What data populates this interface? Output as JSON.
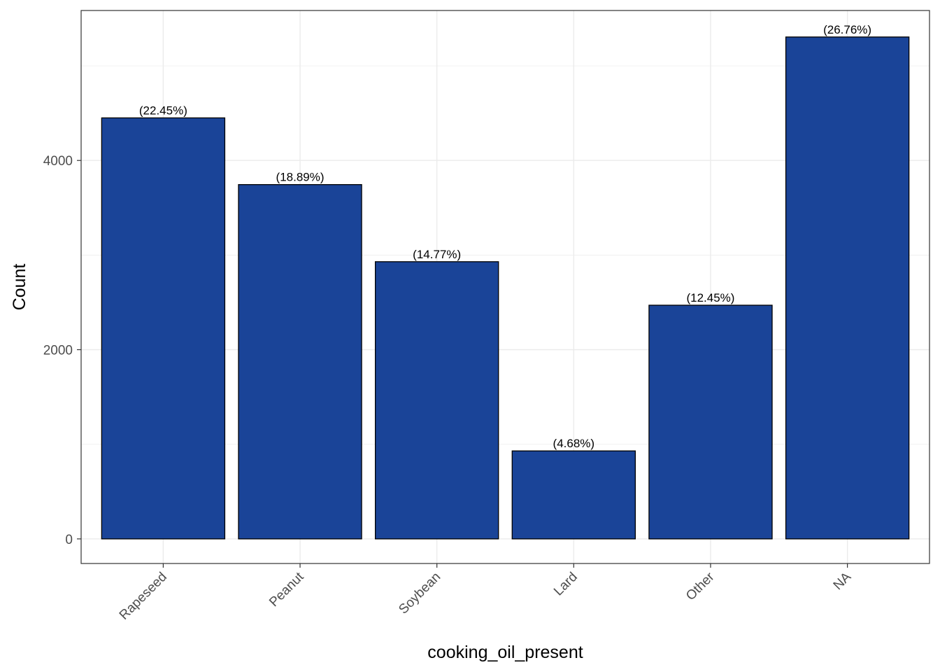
{
  "chart_data": {
    "type": "bar",
    "categories": [
      "Rapeseed",
      "Peanut",
      "Soybean",
      "Lard",
      "Other",
      "NA"
    ],
    "values": [
      4450,
      3745,
      2930,
      930,
      2470,
      5305
    ],
    "labels": [
      "(22.45%)",
      "(18.89%)",
      "(14.77%)",
      "(4.68%)",
      "(12.45%)",
      "(26.76%)"
    ],
    "xlabel": "cooking_oil_present",
    "ylabel": "Count",
    "ylim": [
      -260,
      5585
    ],
    "yticks": [
      0,
      2000,
      4000
    ],
    "ytick_labels": [
      "0",
      "2000",
      "4000"
    ],
    "grid": true,
    "colors": {
      "bar": "#1A4498",
      "bar_outline": "#000000",
      "grid": "#EBEBEB",
      "panel_border": "#333333"
    }
  }
}
